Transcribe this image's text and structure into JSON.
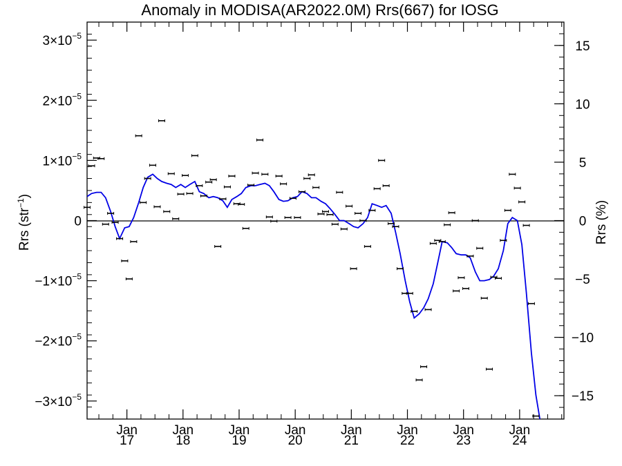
{
  "chart_data": {
    "type": "scatter",
    "title": "Anomaly in MODISA(AR2022.0M) Rrs(667) for IOSG",
    "ylabel": "Rrs (str",
    "ylabel_sup": "−1",
    "ylabel_close": ")",
    "y2label": "Rrs (%)",
    "xlim": [
      2016.29,
      2024.79
    ],
    "ylim": [
      -3.3e-05,
      3.3e-05
    ],
    "y2lim": [
      -17,
      17
    ],
    "grid": false,
    "zero_line": true,
    "x_ticks": [
      {
        "x": 2017.0,
        "month": "Jan",
        "year": "17"
      },
      {
        "x": 2018.0,
        "month": "Jan",
        "year": "18"
      },
      {
        "x": 2019.0,
        "month": "Jan",
        "year": "19"
      },
      {
        "x": 2020.0,
        "month": "Jan",
        "year": "20"
      },
      {
        "x": 2021.0,
        "month": "Jan",
        "year": "21"
      },
      {
        "x": 2022.0,
        "month": "Jan",
        "year": "22"
      },
      {
        "x": 2023.0,
        "month": "Jan",
        "year": "23"
      },
      {
        "x": 2024.0,
        "month": "Jan",
        "year": "24"
      }
    ],
    "y_ticks": [
      {
        "value": 3e-05,
        "mant": "3×10",
        "exp": "−5"
      },
      {
        "value": 2e-05,
        "mant": "2×10",
        "exp": "−5"
      },
      {
        "value": 1e-05,
        "mant": "1×10",
        "exp": "−5"
      },
      {
        "value": 0,
        "mant": "0",
        "exp": ""
      },
      {
        "value": -1e-05,
        "mant": "−1×10",
        "exp": "−5"
      },
      {
        "value": -2e-05,
        "mant": "−2×10",
        "exp": "−5"
      },
      {
        "value": -3e-05,
        "mant": "−3×10",
        "exp": "−5"
      }
    ],
    "y2_ticks": [
      {
        "value": 15,
        "label": "15"
      },
      {
        "value": 10,
        "label": "10"
      },
      {
        "value": 5,
        "label": "5"
      },
      {
        "value": 0,
        "label": "0"
      },
      {
        "value": -5,
        "label": "−5"
      },
      {
        "value": -10,
        "label": "−10"
      },
      {
        "value": -15,
        "label": "−15"
      }
    ],
    "series": [
      {
        "kind": "points",
        "color": "#000000",
        "points": [
          [
            2016.29,
            2.2e-06
          ],
          [
            2016.37,
            9.1e-06
          ],
          [
            2016.46,
            1.04e-05
          ],
          [
            2016.54,
            1.03e-05
          ],
          [
            2016.62,
            -6e-07
          ],
          [
            2016.71,
            1.2e-06
          ],
          [
            2016.79,
            -3e-07
          ],
          [
            2016.87,
            -3e-06
          ],
          [
            2016.96,
            -6.7e-06
          ],
          [
            2017.04,
            -9.7e-06
          ],
          [
            2017.12,
            -3.5e-06
          ],
          [
            2017.21,
            1.41e-05
          ],
          [
            2017.29,
            3e-06
          ],
          [
            2017.37,
            7e-06
          ],
          [
            2017.46,
            9.2e-06
          ],
          [
            2017.54,
            2.3e-06
          ],
          [
            2017.62,
            1.66e-05
          ],
          [
            2017.71,
            1.5e-06
          ],
          [
            2017.79,
            7.8e-06
          ],
          [
            2017.87,
            3e-07
          ],
          [
            2017.96,
            4.4e-06
          ],
          [
            2018.04,
            7.5e-06
          ],
          [
            2018.12,
            4.5e-06
          ],
          [
            2018.21,
            1.08e-05
          ],
          [
            2018.29,
            5.8e-06
          ],
          [
            2018.37,
            4.1e-06
          ],
          [
            2018.46,
            6.4e-06
          ],
          [
            2018.54,
            6.8e-06
          ],
          [
            2018.62,
            -4.3e-06
          ],
          [
            2018.71,
            3.6e-06
          ],
          [
            2018.79,
            5.6e-06
          ],
          [
            2018.87,
            7.4e-06
          ],
          [
            2018.96,
            2.8e-06
          ],
          [
            2019.04,
            2.7e-06
          ],
          [
            2019.12,
            -1.3e-06
          ],
          [
            2019.21,
            5.9e-06
          ],
          [
            2019.29,
            7.9e-06
          ],
          [
            2019.37,
            1.34e-05
          ],
          [
            2019.46,
            7.7e-06
          ],
          [
            2019.54,
            6e-07
          ],
          [
            2019.62,
            -1e-07
          ],
          [
            2019.71,
            7.4e-06
          ],
          [
            2019.79,
            6.1e-06
          ],
          [
            2019.87,
            5e-07
          ],
          [
            2019.96,
            3.7e-06
          ],
          [
            2020.04,
            5e-07
          ],
          [
            2020.12,
            4.8e-06
          ],
          [
            2020.21,
            7e-06
          ],
          [
            2020.29,
            7.6e-06
          ],
          [
            2020.37,
            5.5e-06
          ],
          [
            2020.46,
            1.1e-06
          ],
          [
            2020.54,
            1.5e-06
          ],
          [
            2020.62,
            1e-06
          ],
          [
            2020.71,
            -6e-07
          ],
          [
            2020.79,
            4.7e-06
          ],
          [
            2020.87,
            -1.4e-06
          ],
          [
            2020.96,
            2.4e-06
          ],
          [
            2021.04,
            -8e-06
          ],
          [
            2021.12,
            1.2e-06
          ],
          [
            2021.21,
            0.0
          ],
          [
            2021.29,
            -4.3e-06
          ],
          [
            2021.37,
            1.7e-06
          ],
          [
            2021.46,
            5.3e-06
          ],
          [
            2021.54,
            1e-05
          ],
          [
            2021.62,
            5.8e-06
          ],
          [
            2021.71,
            -5e-07
          ],
          [
            2021.79,
            -1e-06
          ],
          [
            2021.87,
            -8e-06
          ],
          [
            2021.96,
            -1.21e-05
          ],
          [
            2022.04,
            -1.21e-05
          ],
          [
            2022.12,
            -1.51e-05
          ],
          [
            2022.21,
            -2.65e-05
          ],
          [
            2022.29,
            -2.43e-05
          ],
          [
            2022.37,
            -1.48e-05
          ],
          [
            2022.46,
            -3.8e-06
          ],
          [
            2022.54,
            -3.3e-06
          ],
          [
            2022.62,
            -3.5e-06
          ],
          [
            2022.71,
            -7e-07
          ],
          [
            2022.79,
            1.3e-06
          ],
          [
            2022.87,
            -1.17e-05
          ],
          [
            2022.96,
            -9.5e-06
          ],
          [
            2023.04,
            -1.13e-05
          ],
          [
            2023.12,
            -5.9e-06
          ],
          [
            2023.21,
            0.0
          ],
          [
            2023.29,
            -4.6e-06
          ],
          [
            2023.37,
            -1.29e-05
          ],
          [
            2023.46,
            -2.47e-05
          ],
          [
            2023.54,
            -9.4e-06
          ],
          [
            2023.62,
            -9.6e-06
          ],
          [
            2023.71,
            -3.3e-06
          ],
          [
            2023.79,
            1.7e-06
          ],
          [
            2023.87,
            7.7e-06
          ],
          [
            2023.96,
            5.4e-06
          ],
          [
            2024.04,
            3.1e-06
          ],
          [
            2024.12,
            -8e-07
          ],
          [
            2024.21,
            -1.38e-05
          ],
          [
            2024.29,
            -3.25e-05
          ]
        ]
      },
      {
        "kind": "line",
        "color": "#0000e6",
        "points": [
          [
            2016.29,
            4e-06
          ],
          [
            2016.37,
            4.5e-06
          ],
          [
            2016.46,
            4.7e-06
          ],
          [
            2016.54,
            4.7e-06
          ],
          [
            2016.62,
            3.8e-06
          ],
          [
            2016.71,
            1.5e-06
          ],
          [
            2016.79,
            -1e-06
          ],
          [
            2016.87,
            -3e-06
          ],
          [
            2016.96,
            -1.2e-06
          ],
          [
            2017.04,
            -1e-06
          ],
          [
            2017.12,
            5e-07
          ],
          [
            2017.21,
            3e-06
          ],
          [
            2017.29,
            5.5e-06
          ],
          [
            2017.37,
            7.2e-06
          ],
          [
            2017.46,
            7.7e-06
          ],
          [
            2017.54,
            7e-06
          ],
          [
            2017.62,
            6.5e-06
          ],
          [
            2017.71,
            6.2e-06
          ],
          [
            2017.79,
            6e-06
          ],
          [
            2017.87,
            5.5e-06
          ],
          [
            2017.96,
            6e-06
          ],
          [
            2018.04,
            5.5e-06
          ],
          [
            2018.12,
            6e-06
          ],
          [
            2018.21,
            6.5e-06
          ],
          [
            2018.29,
            4.8e-06
          ],
          [
            2018.37,
            4.5e-06
          ],
          [
            2018.46,
            3.8e-06
          ],
          [
            2018.54,
            4e-06
          ],
          [
            2018.62,
            3.8e-06
          ],
          [
            2018.71,
            3.3e-06
          ],
          [
            2018.79,
            2.2e-06
          ],
          [
            2018.87,
            3.5e-06
          ],
          [
            2018.96,
            4e-06
          ],
          [
            2019.04,
            4.5e-06
          ],
          [
            2019.12,
            5.5e-06
          ],
          [
            2019.21,
            5.8e-06
          ],
          [
            2019.29,
            5.8e-06
          ],
          [
            2019.37,
            6e-06
          ],
          [
            2019.46,
            6.2e-06
          ],
          [
            2019.54,
            5.8e-06
          ],
          [
            2019.62,
            4.8e-06
          ],
          [
            2019.71,
            3.5e-06
          ],
          [
            2019.79,
            3.2e-06
          ],
          [
            2019.87,
            3.3e-06
          ],
          [
            2019.96,
            3.8e-06
          ],
          [
            2020.04,
            4e-06
          ],
          [
            2020.12,
            4.8e-06
          ],
          [
            2020.21,
            4.5e-06
          ],
          [
            2020.29,
            3.8e-06
          ],
          [
            2020.37,
            3.8e-06
          ],
          [
            2020.46,
            3.2e-06
          ],
          [
            2020.54,
            2.8e-06
          ],
          [
            2020.62,
            2e-06
          ],
          [
            2020.71,
            1e-06
          ],
          [
            2020.79,
            0.0
          ],
          [
            2020.87,
            0.0
          ],
          [
            2020.96,
            -5e-07
          ],
          [
            2021.04,
            -1e-06
          ],
          [
            2021.12,
            -1.2e-06
          ],
          [
            2021.21,
            -5e-07
          ],
          [
            2021.29,
            5e-07
          ],
          [
            2021.37,
            2.8e-06
          ],
          [
            2021.46,
            2.5e-06
          ],
          [
            2021.54,
            2.2e-06
          ],
          [
            2021.62,
            2.5e-06
          ],
          [
            2021.71,
            1.2e-06
          ],
          [
            2021.79,
            -2e-06
          ],
          [
            2021.87,
            -5.5e-06
          ],
          [
            2021.96,
            -1e-05
          ],
          [
            2022.04,
            -1.35e-05
          ],
          [
            2022.12,
            -1.62e-05
          ],
          [
            2022.21,
            -1.55e-05
          ],
          [
            2022.29,
            -1.45e-05
          ],
          [
            2022.37,
            -1.3e-05
          ],
          [
            2022.46,
            -1.05e-05
          ],
          [
            2022.54,
            -7e-06
          ],
          [
            2022.62,
            -3.5e-06
          ],
          [
            2022.71,
            -3.7e-06
          ],
          [
            2022.79,
            -4.5e-06
          ],
          [
            2022.87,
            -5.5e-06
          ],
          [
            2022.96,
            -5.7e-06
          ],
          [
            2023.04,
            -5.7e-06
          ],
          [
            2023.12,
            -6.2e-06
          ],
          [
            2023.21,
            -8.5e-06
          ],
          [
            2023.29,
            -1e-05
          ],
          [
            2023.37,
            -1e-05
          ],
          [
            2023.46,
            -9.8e-06
          ],
          [
            2023.54,
            -9.2e-06
          ],
          [
            2023.62,
            -8e-06
          ],
          [
            2023.71,
            -5e-06
          ],
          [
            2023.79,
            -5e-07
          ],
          [
            2023.87,
            5e-07
          ],
          [
            2023.96,
            0.0
          ],
          [
            2024.04,
            -4e-06
          ],
          [
            2024.12,
            -1.2e-05
          ],
          [
            2024.21,
            -2.2e-05
          ],
          [
            2024.29,
            -2.9e-05
          ],
          [
            2024.37,
            -3.35e-05
          ]
        ]
      }
    ]
  }
}
